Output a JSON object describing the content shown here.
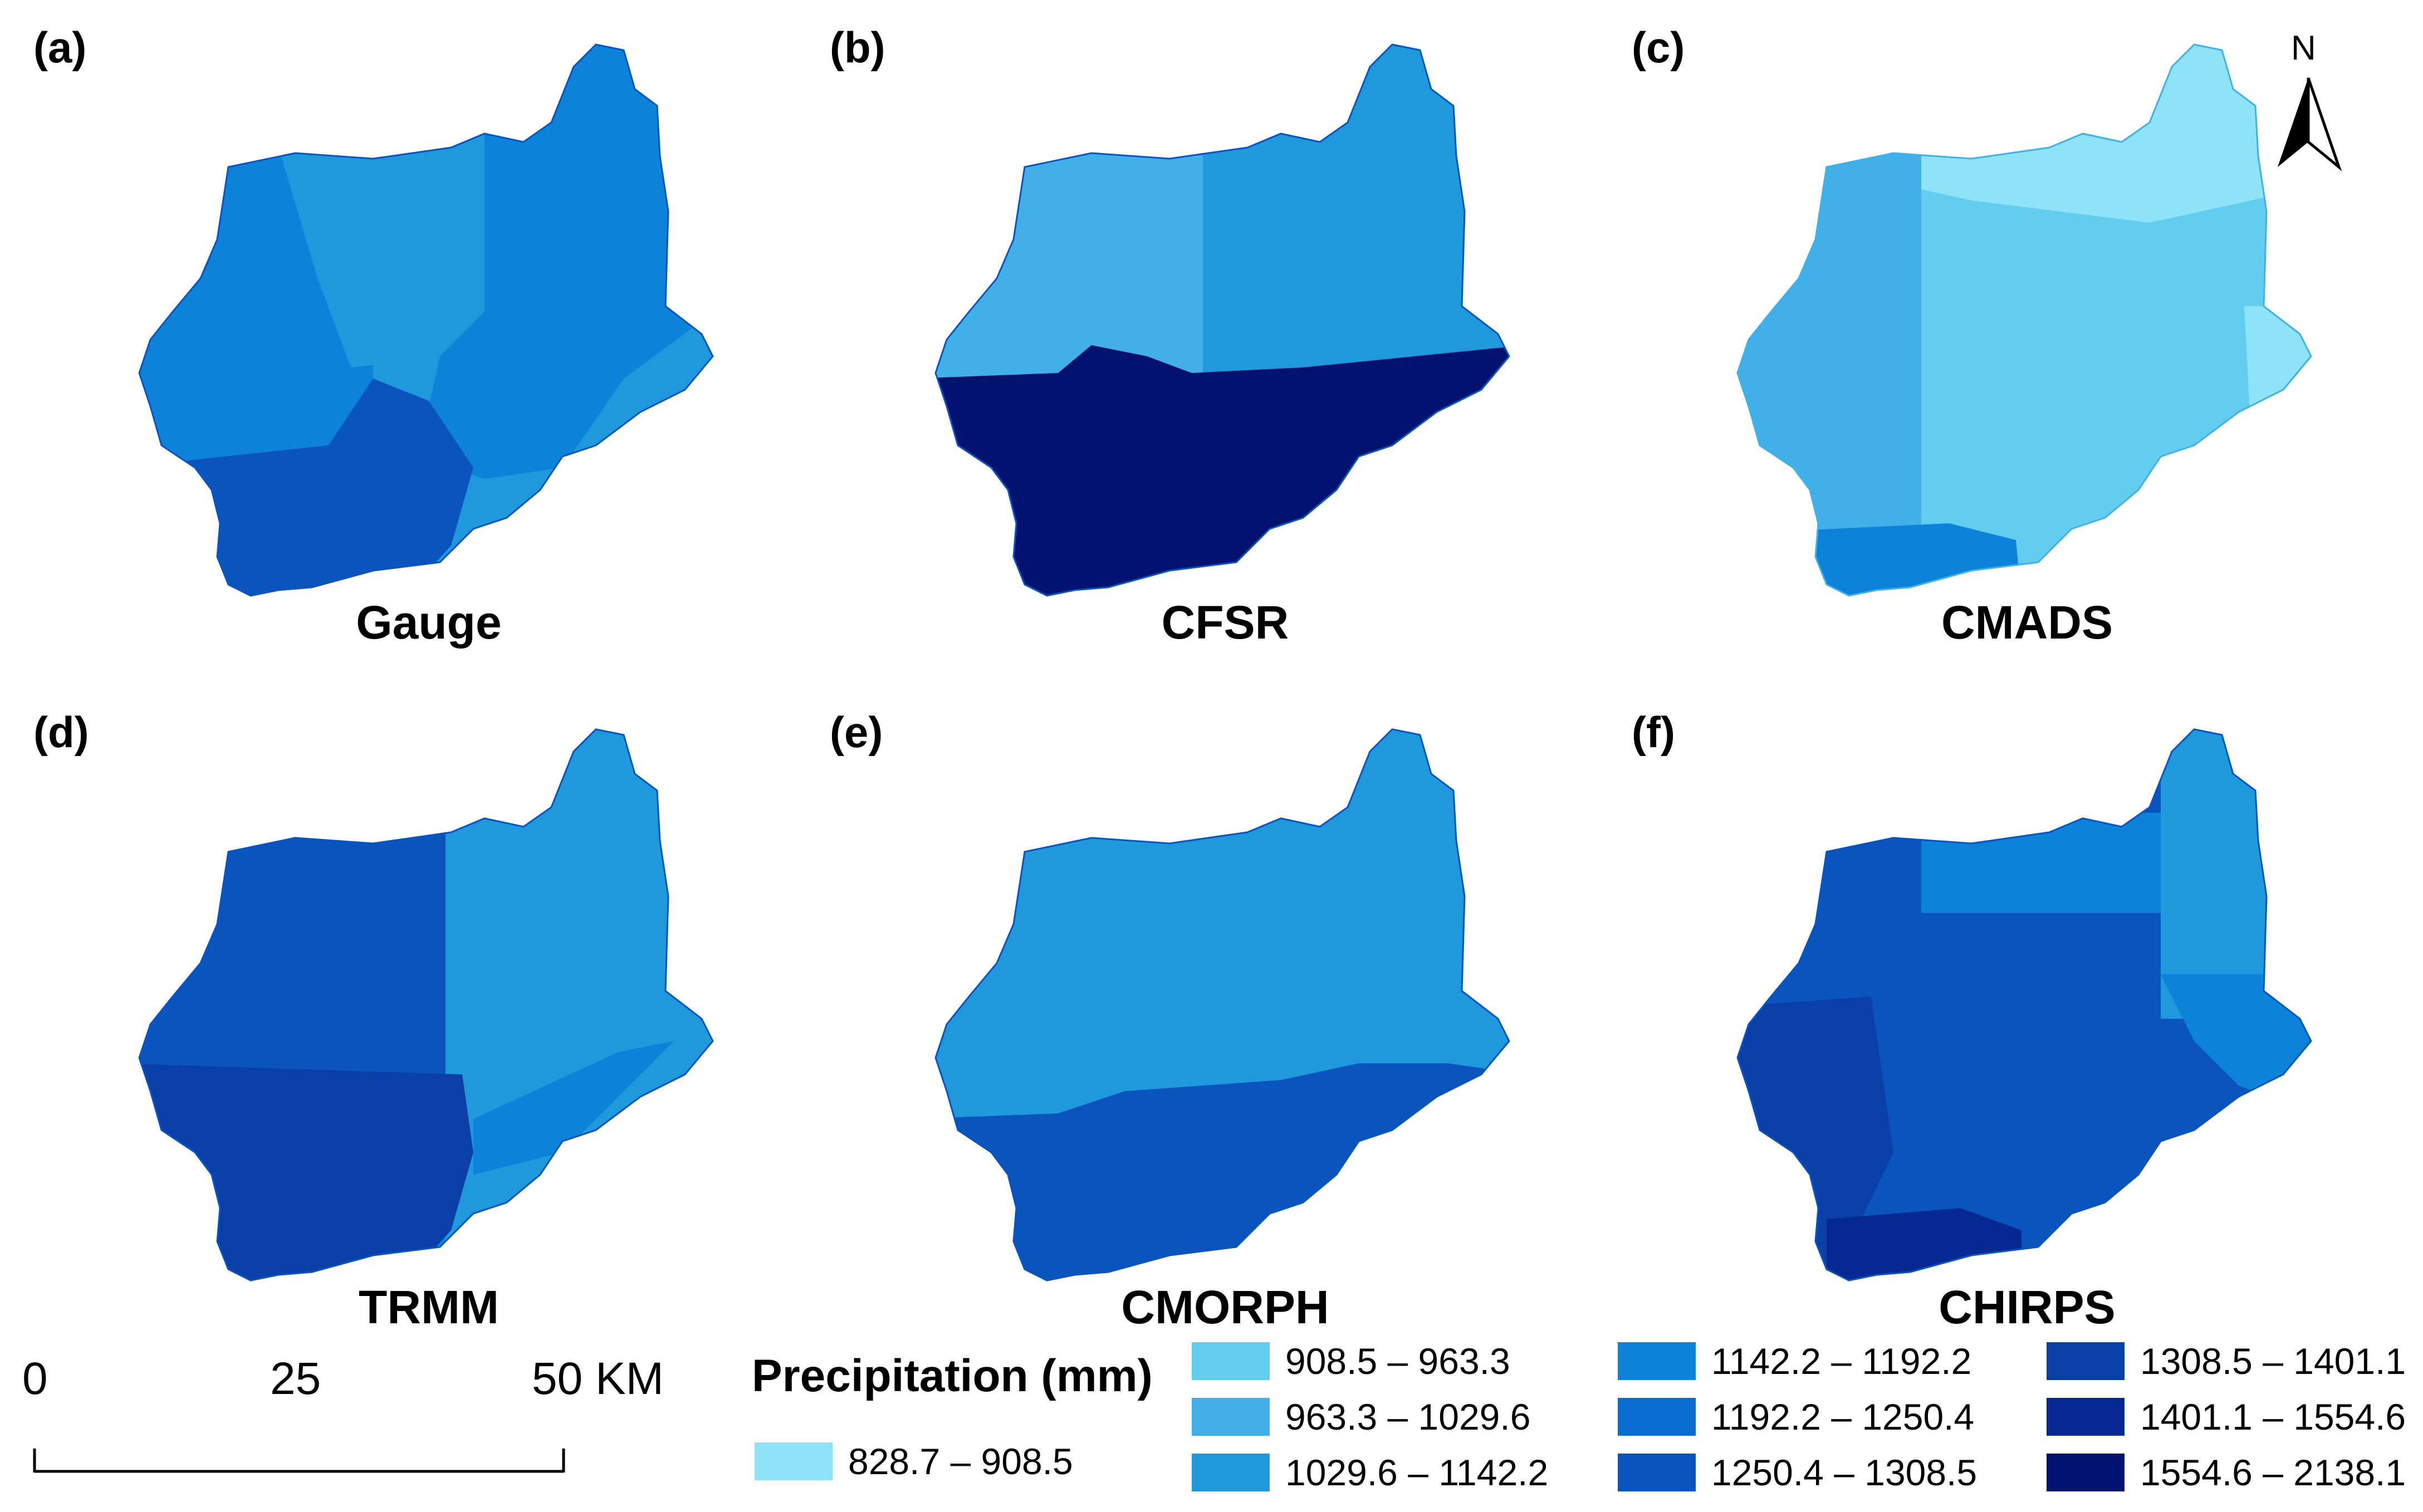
{
  "panels": [
    {
      "tag": "(a)",
      "title": "Gauge"
    },
    {
      "tag": "(b)",
      "title": "CFSR"
    },
    {
      "tag": "(c)",
      "title": "CMADS"
    },
    {
      "tag": "(d)",
      "title": "TRMM"
    },
    {
      "tag": "(e)",
      "title": "CMORPH"
    },
    {
      "tag": "(f)",
      "title": "CHIRPS"
    }
  ],
  "north_arrow": {
    "label": "N"
  },
  "scale_bar": {
    "ticks": [
      "0",
      "25",
      "50 KM"
    ]
  },
  "legend": {
    "title": "Precipitation (mm)",
    "classes": [
      {
        "label": "828.7 – 908.5",
        "color": "#8ee3f7"
      },
      {
        "label": "908.5 – 963.3",
        "color": "#63cdf0"
      },
      {
        "label": "963.3 – 1029.6",
        "color": "#42b0e8"
      },
      {
        "label": "1029.6 – 1142.2",
        "color": "#1f98dc"
      },
      {
        "label": "1142.2 – 1192.2",
        "color": "#0c82d8"
      },
      {
        "label": "1192.2 – 1250.4",
        "color": "#0a6ccf"
      },
      {
        "label": "1250.4 – 1308.5",
        "color": "#0a55bd"
      },
      {
        "label": "1308.5 – 1401.1",
        "color": "#0a3fa8"
      },
      {
        "label": "1401.1 – 1554.6",
        "color": "#062891"
      },
      {
        "label": "1554.6 – 2138.1",
        "color": "#02126e"
      }
    ]
  }
}
